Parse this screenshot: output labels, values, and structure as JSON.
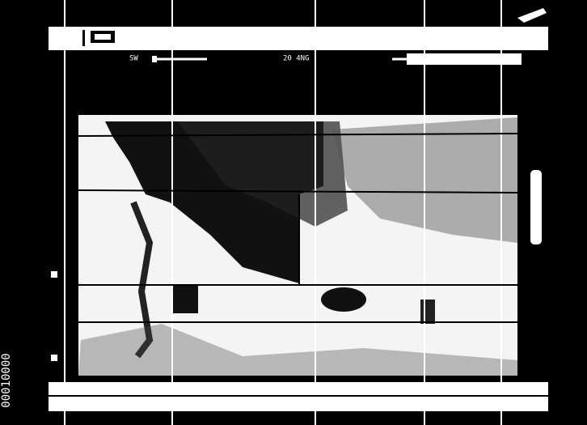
{
  "toolbar": {
    "left_label": "SW",
    "center_label": "20 4NG"
  },
  "side_label": "00010000"
}
